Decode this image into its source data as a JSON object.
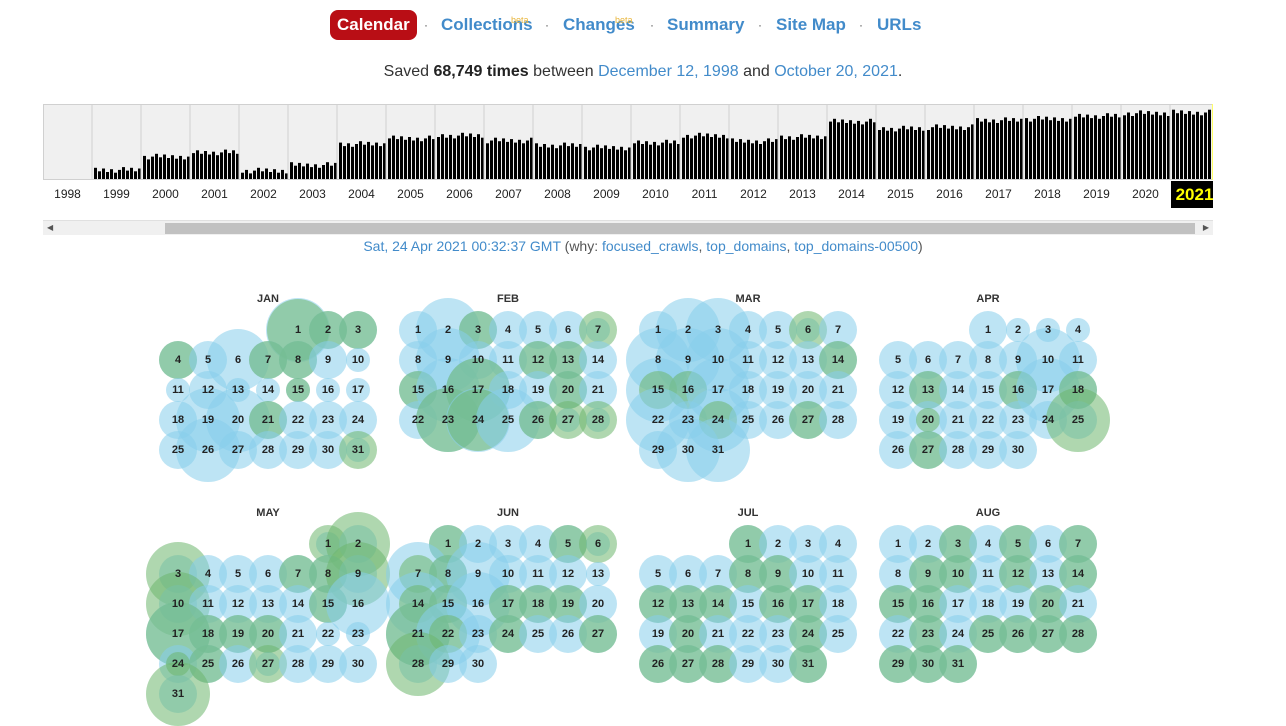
{
  "nav": {
    "items": [
      {
        "label": "Calendar",
        "active": true
      },
      {
        "label": "Collections",
        "beta": "beta"
      },
      {
        "label": "Changes",
        "beta": "beta"
      },
      {
        "label": "Summary"
      },
      {
        "label": "Site Map"
      },
      {
        "label": "URLs"
      }
    ],
    "separator": "·"
  },
  "summary": {
    "prefix": "Saved",
    "count": "68,749 times",
    "between": "between",
    "start_date": "December 12, 1998",
    "and": "and",
    "end_date": "October 20, 2021",
    "period": "."
  },
  "sparkline": {
    "years": [
      "1998",
      "1999",
      "2000",
      "2001",
      "2002",
      "2003",
      "2004",
      "2005",
      "2006",
      "2007",
      "2008",
      "2009",
      "2010",
      "2011",
      "2012",
      "2013",
      "2014",
      "2015",
      "2016",
      "2017",
      "2018",
      "2019",
      "2020",
      "2021"
    ],
    "selected_year": "2021",
    "yearly_levels": [
      0.0,
      0.13,
      0.32,
      0.38,
      0.12,
      0.2,
      0.5,
      0.58,
      0.62,
      0.55,
      0.48,
      0.45,
      0.52,
      0.62,
      0.54,
      0.6,
      0.82,
      0.72,
      0.74,
      0.84,
      0.86,
      0.9,
      0.94,
      0.95
    ],
    "bar_color": "#000000",
    "selected_color": "#ffff66"
  },
  "capture": {
    "date": "Sat, 24 Apr 2021 00:32:37 GMT",
    "why_prefix": "(why:",
    "reasons": [
      "focused_crawls",
      "top_domains",
      "top_domains-00500"
    ],
    "suffix": ")"
  },
  "colors": {
    "blue_bubble": "#87ceeb",
    "green_bubble": "#6eb76e",
    "active_nav": "#b90e15",
    "link": "#428bca"
  },
  "calendar": [
    {
      "name": "JAN",
      "start": 4,
      "days": 31,
      "blue": {
        "1": 2,
        "2": 1,
        "3": 1,
        "4": 1,
        "5": 1,
        "6": 3,
        "7": 1,
        "8": 1,
        "9": 1,
        "10": 0,
        "11": 0,
        "12": 1,
        "13": 0,
        "14": 0,
        "15": 0,
        "16": 0,
        "17": 0,
        "18": 1,
        "19": 2,
        "20": 2,
        "21": 1,
        "22": 1,
        "23": 1,
        "24": 1,
        "25": 1,
        "26": 2,
        "27": 1,
        "28": 1,
        "29": 1,
        "30": 1,
        "31": 0
      },
      "green": {
        "1": 3,
        "2": 1,
        "3": 1,
        "4": 1,
        "7": 1,
        "8": 1,
        "15": 0,
        "21": 1,
        "31": 1
      }
    },
    {
      "name": "FEB",
      "start": 0,
      "days": 28,
      "blue": {
        "1": 1,
        "2": 2,
        "3": 1,
        "4": 1,
        "5": 1,
        "6": 1,
        "7": 0,
        "8": 1,
        "9": 2,
        "10": 1,
        "11": 1,
        "12": 1,
        "13": 1,
        "14": 1,
        "15": 1,
        "16": 2,
        "17": 2,
        "18": 1,
        "19": 1,
        "20": 1,
        "21": 1,
        "22": 1,
        "23": 2,
        "24": 2,
        "25": 2,
        "26": 1,
        "27": 0,
        "28": 0
      },
      "green": {
        "3": 1,
        "7": 1,
        "12": 1,
        "13": 1,
        "15": 1,
        "17": 2,
        "20": 1,
        "23": 2,
        "24": 3,
        "26": 1,
        "27": 1,
        "28": 1
      }
    },
    {
      "name": "MAR",
      "start": 0,
      "days": 31,
      "blue": {
        "1": 1,
        "2": 2,
        "3": 2,
        "4": 1,
        "5": 1,
        "6": 0,
        "7": 1,
        "8": 2,
        "9": 2,
        "10": 2,
        "11": 1,
        "12": 1,
        "13": 1,
        "14": 1,
        "15": 2,
        "16": 1,
        "17": 2,
        "18": 1,
        "19": 1,
        "20": 1,
        "21": 1,
        "22": 2,
        "23": 1,
        "24": 2,
        "25": 1,
        "26": 1,
        "27": 1,
        "28": 1,
        "29": 1,
        "30": 2,
        "31": 2
      },
      "green": {
        "6": 1,
        "14": 1,
        "15": 1,
        "16": 1,
        "24": 1,
        "27": 1
      }
    },
    {
      "name": "APR",
      "start": 3,
      "days": 30,
      "blue": {
        "1": 1,
        "2": 0,
        "3": 0,
        "4": 0,
        "5": 1,
        "6": 1,
        "7": 1,
        "8": 1,
        "9": 1,
        "10": 2,
        "11": 1,
        "12": 1,
        "13": 1,
        "14": 1,
        "15": 1,
        "16": 1,
        "17": 2,
        "18": 1,
        "19": 1,
        "20": 1,
        "21": 1,
        "22": 1,
        "23": 1,
        "24": 1,
        "25": 1,
        "26": 1,
        "27": 1,
        "28": 1,
        "29": 1,
        "30": 1
      },
      "green": {
        "13": 1,
        "16": 1,
        "18": 1,
        "20": 0,
        "25": 2,
        "27": 1
      }
    },
    {
      "name": "MAY",
      "start": 5,
      "days": 31,
      "blue": {
        "1": 0,
        "2": 1,
        "3": 1,
        "4": 1,
        "5": 1,
        "6": 1,
        "7": 1,
        "8": 1,
        "9": 1,
        "10": 1,
        "11": 1,
        "12": 1,
        "13": 1,
        "14": 1,
        "15": 1,
        "16": 2,
        "17": 2,
        "18": 1,
        "19": 1,
        "20": 1,
        "21": 1,
        "22": 0,
        "23": 0,
        "24": 1,
        "25": 1,
        "26": 1,
        "27": 0,
        "28": 1,
        "29": 1,
        "30": 1,
        "31": 1
      },
      "green": {
        "1": 1,
        "2": 2,
        "3": 2,
        "7": 1,
        "8": 1,
        "9": 2,
        "10": 2,
        "15": 1,
        "17": 2,
        "18": 1,
        "19": 1,
        "20": 1,
        "24": 0,
        "25": 1,
        "27": 1,
        "31": 2
      }
    },
    {
      "name": "JUN",
      "start": 1,
      "days": 30,
      "blue": {
        "1": 1,
        "2": 1,
        "3": 1,
        "4": 1,
        "5": 1,
        "6": 0,
        "7": 2,
        "8": 1,
        "9": 2,
        "10": 1,
        "11": 1,
        "12": 1,
        "13": 0,
        "14": 2,
        "15": 1,
        "16": 2,
        "17": 1,
        "18": 1,
        "19": 1,
        "20": 1,
        "21": 2,
        "22": 2,
        "23": 1,
        "24": 1,
        "25": 1,
        "26": 1,
        "27": 1,
        "28": 1,
        "29": 1,
        "30": 1
      },
      "green": {
        "1": 1,
        "5": 1,
        "6": 1,
        "7": 1,
        "8": 1,
        "14": 1,
        "15": 1,
        "17": 1,
        "18": 1,
        "19": 1,
        "21": 2,
        "22": 1,
        "24": 1,
        "27": 1,
        "28": 2
      }
    },
    {
      "name": "JUL",
      "start": 3,
      "days": 31,
      "blue": {
        "1": 1,
        "2": 1,
        "3": 1,
        "4": 1,
        "5": 1,
        "6": 1,
        "7": 1,
        "8": 1,
        "9": 1,
        "10": 1,
        "11": 1,
        "12": 1,
        "13": 1,
        "14": 1,
        "15": 1,
        "16": 1,
        "17": 1,
        "18": 1,
        "19": 1,
        "20": 1,
        "21": 1,
        "22": 1,
        "23": 1,
        "24": 1,
        "25": 1,
        "26": 1,
        "27": 1,
        "28": 1,
        "29": 1,
        "30": 1,
        "31": 1
      },
      "green": {
        "1": 1,
        "8": 1,
        "9": 1,
        "12": 1,
        "13": 1,
        "14": 1,
        "16": 1,
        "17": 1,
        "20": 1,
        "24": 1,
        "26": 1,
        "27": 1,
        "28": 1,
        "31": 1
      }
    },
    {
      "name": "AUG",
      "start": 0,
      "days": 31,
      "blue": {
        "1": 1,
        "2": 1,
        "3": 1,
        "4": 1,
        "5": 1,
        "6": 1,
        "7": 1,
        "8": 1,
        "9": 1,
        "10": 1,
        "11": 1,
        "12": 1,
        "13": 1,
        "14": 1,
        "15": 1,
        "16": 1,
        "17": 1,
        "18": 1,
        "19": 1,
        "20": 1,
        "21": 1,
        "22": 1,
        "23": 1,
        "24": 1,
        "25": 1,
        "26": 1,
        "27": 1,
        "28": 1,
        "29": 1,
        "30": 1,
        "31": 1
      },
      "green": {
        "3": 1,
        "5": 1,
        "7": 1,
        "9": 1,
        "10": 1,
        "12": 1,
        "14": 1,
        "15": 1,
        "16": 1,
        "20": 1,
        "23": 1,
        "25": 1,
        "26": 1,
        "27": 1,
        "28": 1,
        "29": 1,
        "30": 1,
        "31": 1
      }
    }
  ]
}
